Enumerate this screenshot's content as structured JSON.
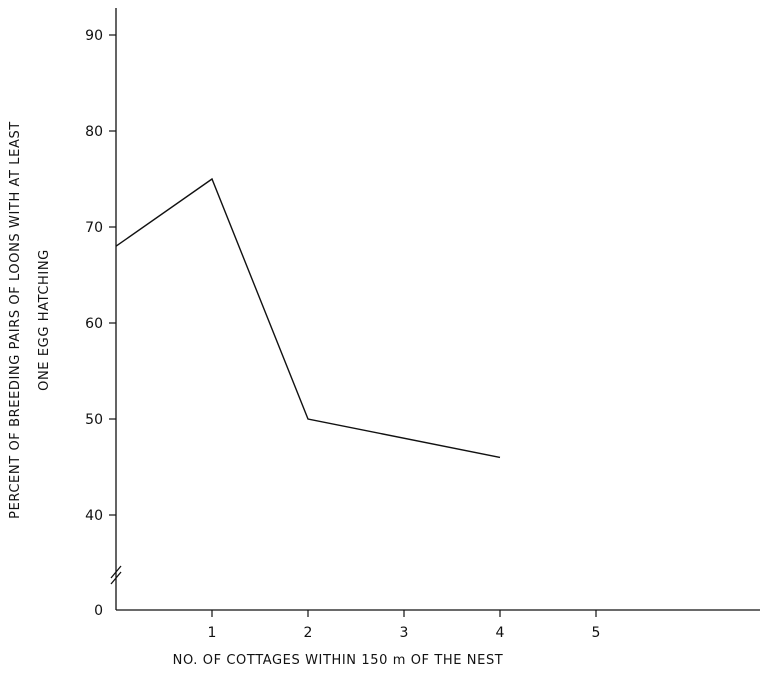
{
  "chart_data": {
    "type": "line",
    "title": "",
    "xlabel": "NO. OF COTTAGES WITHIN 150 m OF THE NEST",
    "ylabel": [
      "PERCENT OF BREEDING PAIRS OF LOONS WITH AT LEAST",
      "ONE EGG HATCHING"
    ],
    "x_ticks": [
      "1",
      "2",
      "3",
      "4",
      "5"
    ],
    "y_ticks": [
      "0",
      "40",
      "50",
      "60",
      "70",
      "80",
      "90"
    ],
    "x_range": [
      0,
      6.8
    ],
    "y_range": [
      35,
      93
    ],
    "y_axis_break": true,
    "grid": false,
    "series": [
      {
        "x": [
          0,
          1,
          2,
          4
        ],
        "y": [
          68,
          75,
          50,
          46
        ]
      }
    ]
  }
}
